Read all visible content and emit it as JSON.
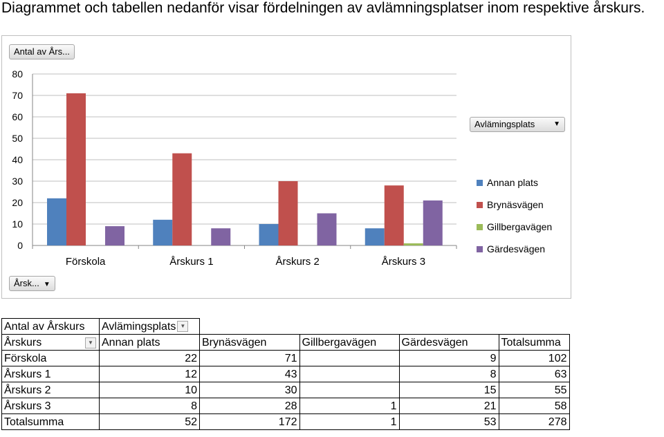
{
  "heading": "Diagrammet och tabellen nedanför visar fördelningen av avlämningsplatser inom respektive årskurs.",
  "chart_buttons": {
    "values_field": "Antal av Års...",
    "axis_field": "Årsk...",
    "legend_field": "Avlämingsplats"
  },
  "chart_data": {
    "type": "bar",
    "categories": [
      "Förskola",
      "Årskurs 1",
      "Årskurs 2",
      "Årskurs 3"
    ],
    "series": [
      {
        "name": "Annan plats",
        "color": "#4f81bd",
        "values": [
          22,
          12,
          10,
          8
        ]
      },
      {
        "name": "Brynäsvägen",
        "color": "#c0504d",
        "values": [
          71,
          43,
          30,
          28
        ]
      },
      {
        "name": "Gillbergavägen",
        "color": "#9bbb59",
        "values": [
          0,
          0,
          0,
          1
        ]
      },
      {
        "name": "Gärdesvägen",
        "color": "#8064a2",
        "values": [
          9,
          8,
          15,
          21
        ]
      }
    ],
    "ylim": [
      0,
      80
    ],
    "yticks": [
      "0",
      "10",
      "20",
      "30",
      "40",
      "50",
      "60",
      "70",
      "80"
    ],
    "grid": true,
    "legend_position": "right"
  },
  "table": {
    "corner": "Antal av Årskurs",
    "col_field": "Avlämingsplats",
    "row_field": "Årskurs",
    "headers": [
      "Annan plats",
      "Brynäsvägen",
      "Gillbergavägen",
      "Gärdesvägen",
      "Totalsumma"
    ],
    "rows": [
      {
        "label": "Förskola",
        "cells": [
          "22",
          "71",
          "",
          "9",
          "102"
        ]
      },
      {
        "label": "Årskurs 1",
        "cells": [
          "12",
          "43",
          "",
          "8",
          "63"
        ]
      },
      {
        "label": "Årskurs 2",
        "cells": [
          "10",
          "30",
          "",
          "15",
          "55"
        ]
      },
      {
        "label": "Årskurs 3",
        "cells": [
          "8",
          "28",
          "1",
          "21",
          "58"
        ]
      },
      {
        "label": "Totalsumma",
        "cells": [
          "52",
          "172",
          "1",
          "53",
          "278"
        ]
      }
    ]
  }
}
